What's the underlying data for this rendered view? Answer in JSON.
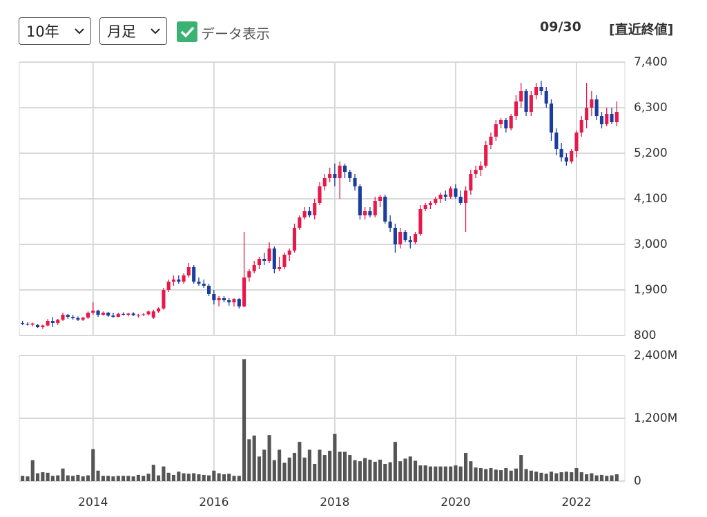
{
  "controls": {
    "period": "10年",
    "timeframe": "月足",
    "show_data": "データ表示",
    "date": "09/30",
    "close_label": "[直近終値]"
  },
  "chart_data": {
    "type": "candlestick",
    "up_color": "#e6194b",
    "down_color": "#1a3d9e",
    "grid": true,
    "x": [
      2012.833,
      2012.917,
      2013.0,
      2013.083,
      2013.167,
      2013.25,
      2013.333,
      2013.417,
      2013.5,
      2013.583,
      2013.667,
      2013.75,
      2013.833,
      2013.917,
      2014.0,
      2014.083,
      2014.167,
      2014.25,
      2014.333,
      2014.417,
      2014.5,
      2014.583,
      2014.667,
      2014.75,
      2014.833,
      2014.917,
      2015.0,
      2015.083,
      2015.167,
      2015.25,
      2015.333,
      2015.417,
      2015.5,
      2015.583,
      2015.667,
      2015.75,
      2015.833,
      2015.917,
      2016.0,
      2016.083,
      2016.167,
      2016.25,
      2016.333,
      2016.417,
      2016.5,
      2016.583,
      2016.667,
      2016.75,
      2016.833,
      2016.917,
      2017.0,
      2017.083,
      2017.167,
      2017.25,
      2017.333,
      2017.417,
      2017.5,
      2017.583,
      2017.667,
      2017.75,
      2017.833,
      2017.917,
      2018.0,
      2018.083,
      2018.167,
      2018.25,
      2018.333,
      2018.417,
      2018.5,
      2018.583,
      2018.667,
      2018.75,
      2018.833,
      2018.917,
      2019.0,
      2019.083,
      2019.167,
      2019.25,
      2019.333,
      2019.417,
      2019.5,
      2019.583,
      2019.667,
      2019.75,
      2019.833,
      2019.917,
      2020.0,
      2020.083,
      2020.167,
      2020.25,
      2020.333,
      2020.417,
      2020.5,
      2020.583,
      2020.667,
      2020.75,
      2020.833,
      2020.917,
      2021.0,
      2021.083,
      2021.167,
      2021.25,
      2021.333,
      2021.417,
      2021.5,
      2021.583,
      2021.667,
      2021.75,
      2021.833,
      2021.917,
      2022.0,
      2022.083,
      2022.167,
      2022.25,
      2022.333,
      2022.417,
      2022.5,
      2022.583,
      2022.667
    ],
    "open": [
      1100,
      1080,
      1060,
      1050,
      1000,
      1040,
      1150,
      1100,
      1180,
      1300,
      1250,
      1220,
      1180,
      1230,
      1350,
      1400,
      1300,
      1350,
      1280,
      1250,
      1320,
      1300,
      1330,
      1290,
      1300,
      1310,
      1230,
      1380,
      1450,
      1900,
      2100,
      2150,
      2100,
      2250,
      2450,
      2100,
      2050,
      2000,
      1800,
      1650,
      1700,
      1650,
      1600,
      1680,
      1500,
      2200,
      2350,
      2500,
      2650,
      2600,
      2900,
      2400,
      2450,
      2750,
      2850,
      3400,
      3650,
      3800,
      3700,
      4000,
      4400,
      4600,
      4700,
      4600,
      4900,
      4750,
      4600,
      4400,
      3700,
      3800,
      3700,
      4050,
      4150,
      3550,
      3400,
      3000,
      3300,
      3100,
      3050,
      3250,
      3850,
      3950,
      4000,
      4100,
      4200,
      4150,
      4350,
      4150,
      4000,
      4300,
      4700,
      4800,
      4900,
      5400,
      5600,
      5900,
      6000,
      5800,
      6100,
      6450,
      6700,
      6200,
      6600,
      6800,
      6700,
      6400,
      5700,
      5300,
      5100,
      5000,
      5250,
      5700,
      6000,
      6300,
      6500,
      6100,
      5900,
      6150,
      5950
    ],
    "high": [
      1150,
      1120,
      1110,
      1080,
      1060,
      1200,
      1250,
      1200,
      1350,
      1320,
      1300,
      1260,
      1250,
      1380,
      1600,
      1420,
      1380,
      1370,
      1350,
      1350,
      1360,
      1350,
      1360,
      1320,
      1340,
      1400,
      1420,
      1480,
      1950,
      2150,
      2250,
      2250,
      2300,
      2550,
      2500,
      2200,
      2150,
      2050,
      1900,
      1750,
      1750,
      1700,
      1700,
      1700,
      3300,
      2400,
      2600,
      2700,
      2800,
      3050,
      2950,
      2700,
      2800,
      2900,
      3500,
      3700,
      3900,
      3900,
      4100,
      4500,
      4700,
      4850,
      4950,
      5000,
      4950,
      4800,
      4700,
      4450,
      3900,
      3900,
      4150,
      4200,
      4200,
      3700,
      3500,
      3400,
      3350,
      3200,
      3300,
      3950,
      4000,
      4050,
      4150,
      4250,
      4300,
      4400,
      4450,
      4300,
      4400,
      4800,
      4900,
      5000,
      5500,
      5700,
      6000,
      6050,
      6050,
      6150,
      6600,
      6900,
      6750,
      6700,
      6900,
      6950,
      6800,
      6500,
      5800,
      5450,
      5200,
      5300,
      5750,
      6100,
      6900,
      6700,
      6600,
      6200,
      6300,
      6300,
      6450
    ],
    "low": [
      1050,
      1040,
      1020,
      980,
      960,
      1020,
      1000,
      1050,
      1150,
      1200,
      1180,
      1150,
      1150,
      1200,
      1300,
      1250,
      1280,
      1250,
      1230,
      1240,
      1280,
      1260,
      1270,
      1230,
      1270,
      1280,
      1200,
      1350,
      1420,
      1850,
      2000,
      2050,
      2050,
      2200,
      2050,
      2000,
      1950,
      1750,
      1550,
      1500,
      1600,
      1520,
      1500,
      1450,
      1480,
      2100,
      2300,
      2400,
      2500,
      2550,
      2300,
      2350,
      2400,
      2600,
      2800,
      3350,
      3600,
      3650,
      3600,
      3950,
      4300,
      4500,
      4400,
      4100,
      4600,
      4500,
      4300,
      3600,
      3600,
      3650,
      3650,
      3900,
      3500,
      3300,
      2800,
      2900,
      3050,
      2900,
      3000,
      3200,
      3800,
      3850,
      3950,
      4000,
      4050,
      4100,
      4100,
      3950,
      3300,
      4200,
      4600,
      4650,
      4850,
      5300,
      5500,
      5800,
      5700,
      5750,
      6000,
      6300,
      6100,
      6100,
      6500,
      6600,
      6300,
      5500,
      5150,
      5000,
      4900,
      4950,
      5100,
      5600,
      5800,
      6100,
      6000,
      5800,
      5850,
      5900,
      5850
    ],
    "close": [
      1080,
      1060,
      1090,
      1000,
      1040,
      1150,
      1100,
      1180,
      1300,
      1250,
      1220,
      1180,
      1230,
      1350,
      1400,
      1300,
      1350,
      1280,
      1250,
      1320,
      1300,
      1330,
      1290,
      1300,
      1310,
      1380,
      1380,
      1450,
      1900,
      2100,
      2150,
      2100,
      2250,
      2450,
      2100,
      2050,
      2000,
      1800,
      1650,
      1700,
      1650,
      1600,
      1680,
      1500,
      2200,
      2350,
      2500,
      2650,
      2600,
      2900,
      2400,
      2450,
      2750,
      2850,
      3400,
      3650,
      3800,
      3700,
      4000,
      4400,
      4600,
      4700,
      4600,
      4900,
      4750,
      4600,
      4400,
      3700,
      3800,
      3700,
      4050,
      4150,
      3550,
      3400,
      3000,
      3300,
      3100,
      3050,
      3250,
      3850,
      3950,
      4000,
      4100,
      4200,
      4150,
      4350,
      4150,
      4000,
      4300,
      4700,
      4800,
      4900,
      5400,
      5600,
      5900,
      6000,
      5800,
      6100,
      6450,
      6700,
      6200,
      6600,
      6800,
      6700,
      6400,
      5700,
      5300,
      5100,
      5000,
      5250,
      5700,
      6000,
      6300,
      6500,
      6100,
      5900,
      6150,
      5950,
      6200
    ],
    "xlim": [
      2012.78,
      2022.8
    ],
    "xticks": [
      2014,
      2016,
      2018,
      2020,
      2022
    ],
    "ylim": [
      800,
      7400
    ],
    "yticks": [
      800,
      {
        "value": 1900,
        "label": "1,900"
      },
      {
        "value": 3000,
        "label": "3,000"
      },
      {
        "value": 4100,
        "label": "4,100"
      },
      {
        "value": 5200,
        "label": "5,200"
      },
      {
        "value": 6300,
        "label": "6,300"
      },
      {
        "value": 7400,
        "label": "7,400"
      }
    ],
    "volume": {
      "color": "#555555",
      "ylim": [
        0,
        2400
      ],
      "yticks": [
        0,
        {
          "value": 1200,
          "label": "1,200M"
        },
        {
          "value": 2400,
          "label": "2,400M"
        }
      ],
      "values": [
        100,
        90,
        400,
        150,
        170,
        160,
        100,
        110,
        240,
        110,
        100,
        120,
        90,
        110,
        610,
        200,
        100,
        100,
        90,
        100,
        100,
        100,
        90,
        120,
        100,
        140,
        310,
        110,
        280,
        160,
        120,
        180,
        150,
        140,
        150,
        130,
        120,
        110,
        200,
        150,
        130,
        140,
        100,
        100,
        2330,
        800,
        870,
        470,
        600,
        880,
        400,
        600,
        350,
        450,
        540,
        750,
        450,
        600,
        330,
        600,
        500,
        580,
        900,
        560,
        560,
        500,
        400,
        380,
        440,
        410,
        370,
        410,
        330,
        360,
        750,
        380,
        430,
        470,
        390,
        300,
        300,
        280,
        280,
        280,
        280,
        280,
        300,
        280,
        540,
        380,
        260,
        250,
        230,
        250,
        220,
        210,
        250,
        200,
        240,
        500,
        230,
        200,
        180,
        160,
        140,
        180,
        150,
        170,
        180,
        170,
        250,
        170,
        130,
        150,
        110,
        120,
        100,
        110,
        130
      ]
    }
  }
}
